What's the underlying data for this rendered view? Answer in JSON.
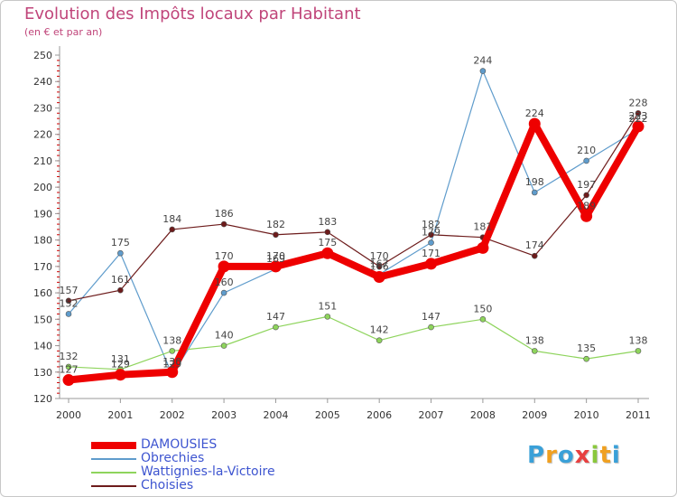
{
  "chart_data": {
    "type": "line",
    "title": "Evolution des Impôts locaux par Habitant",
    "subtitle": "(en € et par an)",
    "categories": [
      "2000",
      "2001",
      "2002",
      "2003",
      "2004",
      "2005",
      "2006",
      "2007",
      "2008",
      "2009",
      "2010",
      "2011"
    ],
    "y_ticks": [
      120,
      130,
      140,
      150,
      160,
      170,
      180,
      190,
      200,
      210,
      220,
      230,
      240,
      250
    ],
    "ylim": [
      120,
      250
    ],
    "grid": false,
    "legend_position": "bottom-left",
    "series": [
      {
        "name": "DAMOUSIES",
        "color": "#ee0000",
        "values": [
          127,
          129,
          130,
          170,
          170,
          175,
          166,
          171,
          177,
          224,
          189,
          223
        ],
        "bold": true
      },
      {
        "name": "Obrechies",
        "color": "#5f9ccc",
        "values": [
          152,
          175,
          129,
          160,
          169,
          175,
          167,
          179,
          244,
          198,
          210,
          222
        ],
        "bold": false
      },
      {
        "name": "Wattignies-la-Victoire",
        "color": "#8ed45c",
        "values": [
          132,
          131,
          138,
          140,
          147,
          151,
          142,
          147,
          150,
          138,
          135,
          138
        ],
        "bold": false
      },
      {
        "name": "Choisies",
        "color": "#6d1b1b",
        "values": [
          157,
          161,
          184,
          186,
          182,
          183,
          170,
          182,
          181,
          174,
          197,
          228
        ],
        "bold": false
      }
    ],
    "data_labels": [
      {
        "year": "2000",
        "value": 157,
        "text": "157"
      },
      {
        "year": "2000",
        "value": 152,
        "text": "152"
      },
      {
        "year": "2000",
        "value": 132,
        "text": "132"
      },
      {
        "year": "2000",
        "value": 127,
        "text": "127"
      },
      {
        "year": "2001",
        "value": 175,
        "text": "175"
      },
      {
        "year": "2001",
        "value": 161,
        "text": "161"
      },
      {
        "year": "2001",
        "value": 131,
        "text": "131"
      },
      {
        "year": "2001",
        "value": 129,
        "text": "129"
      },
      {
        "year": "2002",
        "value": 184,
        "text": "184"
      },
      {
        "year": "2002",
        "value": 138,
        "text": "138"
      },
      {
        "year": "2002",
        "value": 130,
        "text": "130"
      },
      {
        "year": "2002",
        "value": 129,
        "text": "129"
      },
      {
        "year": "2003",
        "value": 186,
        "text": "186"
      },
      {
        "year": "2003",
        "value": 170,
        "text": "170"
      },
      {
        "year": "2003",
        "value": 160,
        "text": "160"
      },
      {
        "year": "2003",
        "value": 140,
        "text": "140"
      },
      {
        "year": "2004",
        "value": 182,
        "text": "182"
      },
      {
        "year": "2004",
        "value": 170,
        "text": "170"
      },
      {
        "year": "2004",
        "value": 169,
        "text": "169"
      },
      {
        "year": "2004",
        "value": 147,
        "text": "147"
      },
      {
        "year": "2005",
        "value": 183,
        "text": "183"
      },
      {
        "year": "2005",
        "value": 175,
        "text": "175"
      },
      {
        "year": "2005",
        "value": 151,
        "text": "151"
      },
      {
        "year": "2006",
        "value": 170,
        "text": "170"
      },
      {
        "year": "2006",
        "value": 167,
        "text": "167"
      },
      {
        "year": "2006",
        "value": 166,
        "text": "166"
      },
      {
        "year": "2006",
        "value": 142,
        "text": "142"
      },
      {
        "year": "2007",
        "value": 182,
        "text": "182"
      },
      {
        "year": "2007",
        "value": 179,
        "text": "179"
      },
      {
        "year": "2007",
        "value": 171,
        "text": "171"
      },
      {
        "year": "2007",
        "value": 147,
        "text": "147"
      },
      {
        "year": "2008",
        "value": 244,
        "text": "244"
      },
      {
        "year": "2008",
        "value": 181,
        "text": "181"
      },
      {
        "year": "2008",
        "value": 150,
        "text": "150"
      },
      {
        "year": "2009",
        "value": 224,
        "text": "224"
      },
      {
        "year": "2009",
        "value": 198,
        "text": "198"
      },
      {
        "year": "2009",
        "value": 174,
        "text": "174"
      },
      {
        "year": "2009",
        "value": 138,
        "text": "138"
      },
      {
        "year": "2010",
        "value": 210,
        "text": "210"
      },
      {
        "year": "2010",
        "value": 197,
        "text": "197"
      },
      {
        "year": "2010",
        "value": 189,
        "text": "189"
      },
      {
        "year": "2010",
        "value": 135,
        "text": "135"
      },
      {
        "year": "2011",
        "value": 228,
        "text": "228"
      },
      {
        "year": "2011",
        "value": 223,
        "text": "223"
      },
      {
        "year": "2011",
        "value": 222,
        "text": "222"
      },
      {
        "year": "2011",
        "value": 138,
        "text": "138"
      }
    ]
  },
  "logo": {
    "letters": [
      "P",
      "r",
      "o",
      "x",
      "i",
      "t",
      "i"
    ],
    "colors": [
      "#3aa0d8",
      "#f0a020",
      "#3aa0d8",
      "#e84040",
      "#8ac83c",
      "#f0a020",
      "#3aa0d8"
    ]
  }
}
